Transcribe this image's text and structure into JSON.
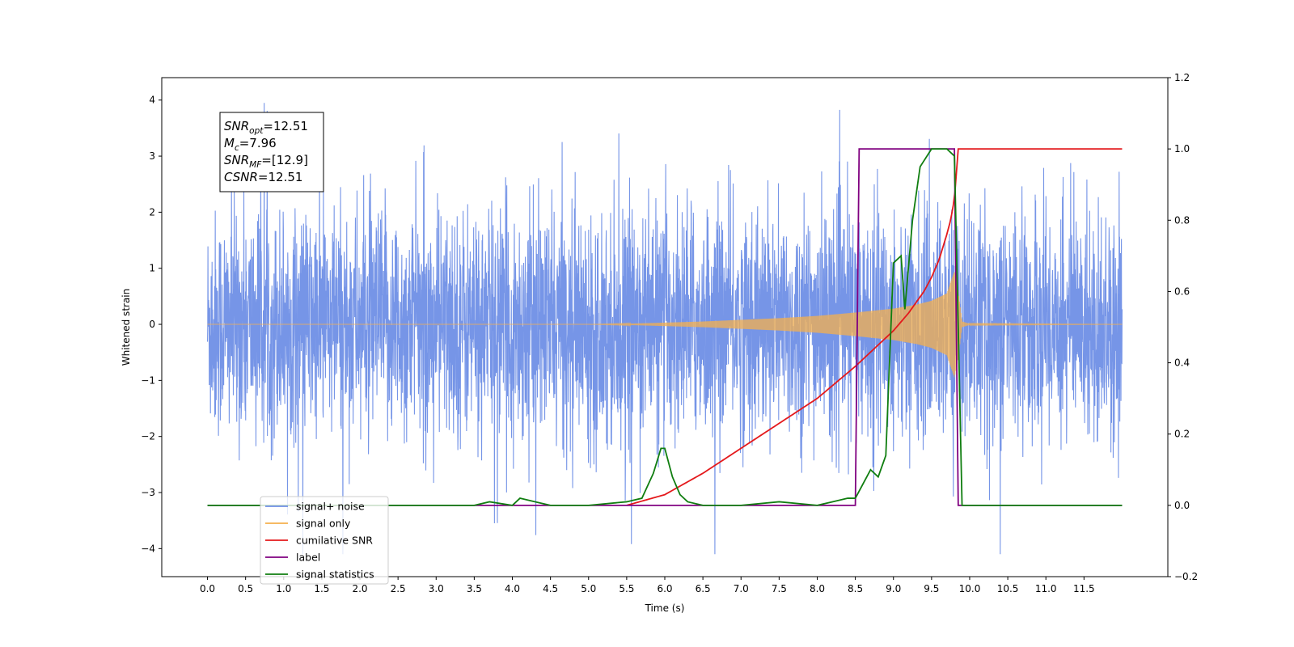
{
  "chart_data": {
    "type": "line",
    "xlabel": "Time (s)",
    "ylabel_left": "Whitened strain",
    "ylabel_right": "",
    "xlim": [
      -0.6,
      12.6
    ],
    "ylim_left": [
      -4.5,
      4.4
    ],
    "ylim_right": [
      -0.2,
      1.2
    ],
    "x_ticks": [
      0.0,
      0.5,
      1.0,
      1.5,
      2.0,
      2.5,
      3.0,
      3.5,
      4.0,
      4.5,
      5.0,
      5.5,
      6.0,
      6.5,
      7.0,
      7.5,
      8.0,
      8.5,
      9.0,
      9.5,
      10.0,
      10.5,
      11.0,
      11.5
    ],
    "y_ticks_left": [
      -4,
      -3,
      -2,
      -1,
      0,
      1,
      2,
      3,
      4
    ],
    "y_ticks_right": [
      -0.2,
      0.0,
      0.2,
      0.4,
      0.6,
      0.8,
      1.0,
      1.2
    ],
    "grid": false,
    "legend_position": "lower-left",
    "colors": {
      "noise": "#6f8fe6",
      "signal": "#f5b04d",
      "snr": "#e4191c",
      "label": "#800080",
      "stats": "#107e10"
    },
    "series": [
      {
        "name": "signal+ noise",
        "axis": "left",
        "description_values": {
          "x_start": 0.0,
          "x_end": 12.0,
          "amplitude_typical": 1.8,
          "amplitude_peak": 3.9
        }
      },
      {
        "name": "signal only",
        "axis": "left",
        "envelope": {
          "x": [
            0.0,
            5.0,
            5.5,
            6.0,
            6.5,
            7.0,
            7.5,
            8.0,
            8.5,
            9.0,
            9.3,
            9.5,
            9.7,
            9.8,
            9.85,
            9.9,
            10.0,
            12.0
          ],
          "y": [
            0.0,
            0.0,
            0.01,
            0.03,
            0.05,
            0.08,
            0.11,
            0.15,
            0.21,
            0.28,
            0.35,
            0.42,
            0.55,
            0.95,
            0.6,
            0.05,
            0.01,
            0.0
          ]
        }
      },
      {
        "name": "cumilative SNR",
        "axis": "right",
        "x": [
          5.5,
          6.0,
          6.5,
          7.0,
          7.5,
          8.0,
          8.5,
          9.0,
          9.2,
          9.4,
          9.5,
          9.6,
          9.7,
          9.75,
          9.8,
          9.85,
          10.0,
          12.0
        ],
        "y": [
          0.0,
          0.03,
          0.09,
          0.16,
          0.23,
          0.3,
          0.39,
          0.49,
          0.54,
          0.6,
          0.64,
          0.69,
          0.76,
          0.8,
          0.86,
          1.0,
          1.0,
          1.0
        ]
      },
      {
        "name": "label",
        "axis": "right",
        "x": [
          0.0,
          8.5,
          8.55,
          9.8,
          9.85,
          12.0
        ],
        "y": [
          0.0,
          0.0,
          1.0,
          1.0,
          0.0,
          0.0
        ]
      },
      {
        "name": "signal statistics",
        "axis": "right",
        "x": [
          0.0,
          3.0,
          3.5,
          3.7,
          4.0,
          4.1,
          4.3,
          4.5,
          5.0,
          5.5,
          5.7,
          5.85,
          5.95,
          6.0,
          6.1,
          6.2,
          6.3,
          6.5,
          7.0,
          7.5,
          8.0,
          8.2,
          8.4,
          8.5,
          8.7,
          8.8,
          8.9,
          9.0,
          9.1,
          9.15,
          9.25,
          9.35,
          9.5,
          9.6,
          9.7,
          9.8,
          9.85,
          9.9,
          10.0,
          12.0
        ],
        "y": [
          0.0,
          0.0,
          0.0,
          0.01,
          0.0,
          0.02,
          0.01,
          0.0,
          0.0,
          0.01,
          0.02,
          0.09,
          0.16,
          0.16,
          0.08,
          0.03,
          0.01,
          0.0,
          0.0,
          0.01,
          0.0,
          0.01,
          0.02,
          0.02,
          0.1,
          0.08,
          0.14,
          0.68,
          0.7,
          0.55,
          0.8,
          0.95,
          1.0,
          1.0,
          1.0,
          0.98,
          0.5,
          0.0,
          0.0,
          0.0
        ]
      }
    ],
    "annotation": [
      {
        "main": "SNR",
        "sub": "opt",
        "rest": "=12.51"
      },
      {
        "main": "M",
        "sub": "c",
        "rest": "=7.96"
      },
      {
        "main": "SNR",
        "sub": "MF",
        "rest": "=[12.9]"
      },
      {
        "main": "CSNR",
        "sub": "",
        "rest": "=12.51"
      }
    ],
    "legend": [
      {
        "label": "signal+ noise",
        "color": "#6f8fe6"
      },
      {
        "label": "signal only",
        "color": "#f5b04d"
      },
      {
        "label": "cumilative SNR",
        "color": "#e4191c"
      },
      {
        "label": "label",
        "color": "#800080"
      },
      {
        "label": "signal statistics",
        "color": "#107e10"
      }
    ]
  }
}
